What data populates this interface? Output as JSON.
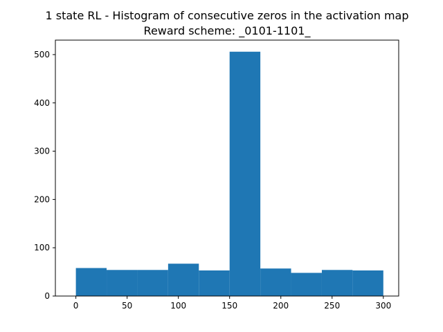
{
  "chart_data": {
    "type": "bar",
    "title": "1 state RL - Histogram of consecutive zeros in the activation map",
    "subtitle": "Reward scheme: _0101-1101_",
    "xlabel": "",
    "ylabel": "",
    "xlim": [
      -20,
      315
    ],
    "ylim": [
      0,
      530
    ],
    "x_ticks": [
      0,
      50,
      100,
      150,
      200,
      250,
      300
    ],
    "y_ticks": [
      0,
      100,
      200,
      300,
      400,
      500
    ],
    "bar_color": "#1f77b4",
    "bins": [
      {
        "x0": 0,
        "x1": 30,
        "count": 58
      },
      {
        "x0": 30,
        "x1": 60,
        "count": 54
      },
      {
        "x0": 60,
        "x1": 90,
        "count": 54
      },
      {
        "x0": 90,
        "x1": 120,
        "count": 67
      },
      {
        "x0": 120,
        "x1": 150,
        "count": 53
      },
      {
        "x0": 150,
        "x1": 180,
        "count": 506
      },
      {
        "x0": 180,
        "x1": 210,
        "count": 57
      },
      {
        "x0": 210,
        "x1": 240,
        "count": 48
      },
      {
        "x0": 240,
        "x1": 270,
        "count": 54
      },
      {
        "x0": 270,
        "x1": 300,
        "count": 53
      }
    ]
  }
}
